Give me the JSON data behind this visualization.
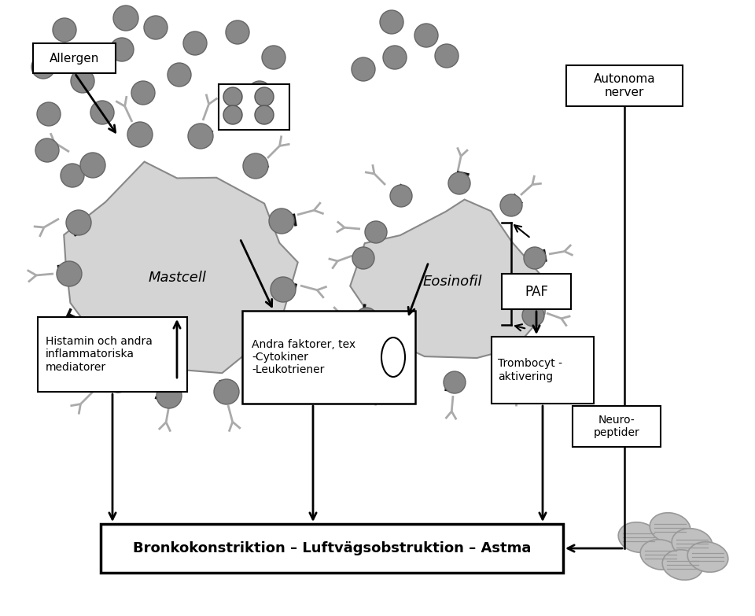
{
  "bg_color": "#ffffff",
  "cell_color": "#d4d4d4",
  "allergen_color": "#888888",
  "text_color": "#000000",
  "title": "Bronkokonstriktion – Luftvägsobstruktion – Astma",
  "allergen_label": "Allergen",
  "autonoma_label": "Autonoma\nnerver",
  "mastcell_label": "Mastcell",
  "eosinofil_label": "Eosinofil",
  "histamin_label": "Histamin och andra\ninflammatoriska\nmediatorer",
  "andra_label": "Andra faktorer, tex\n-Cytokiner\n-Leukotriener",
  "paf_label": "PAF",
  "trombocyt_label": "Trombocyt -\naktivering",
  "neuropeptider_label": "Neuro-\npeptider",
  "figw": 9.6,
  "figh": 7.83,
  "dpi": 100
}
